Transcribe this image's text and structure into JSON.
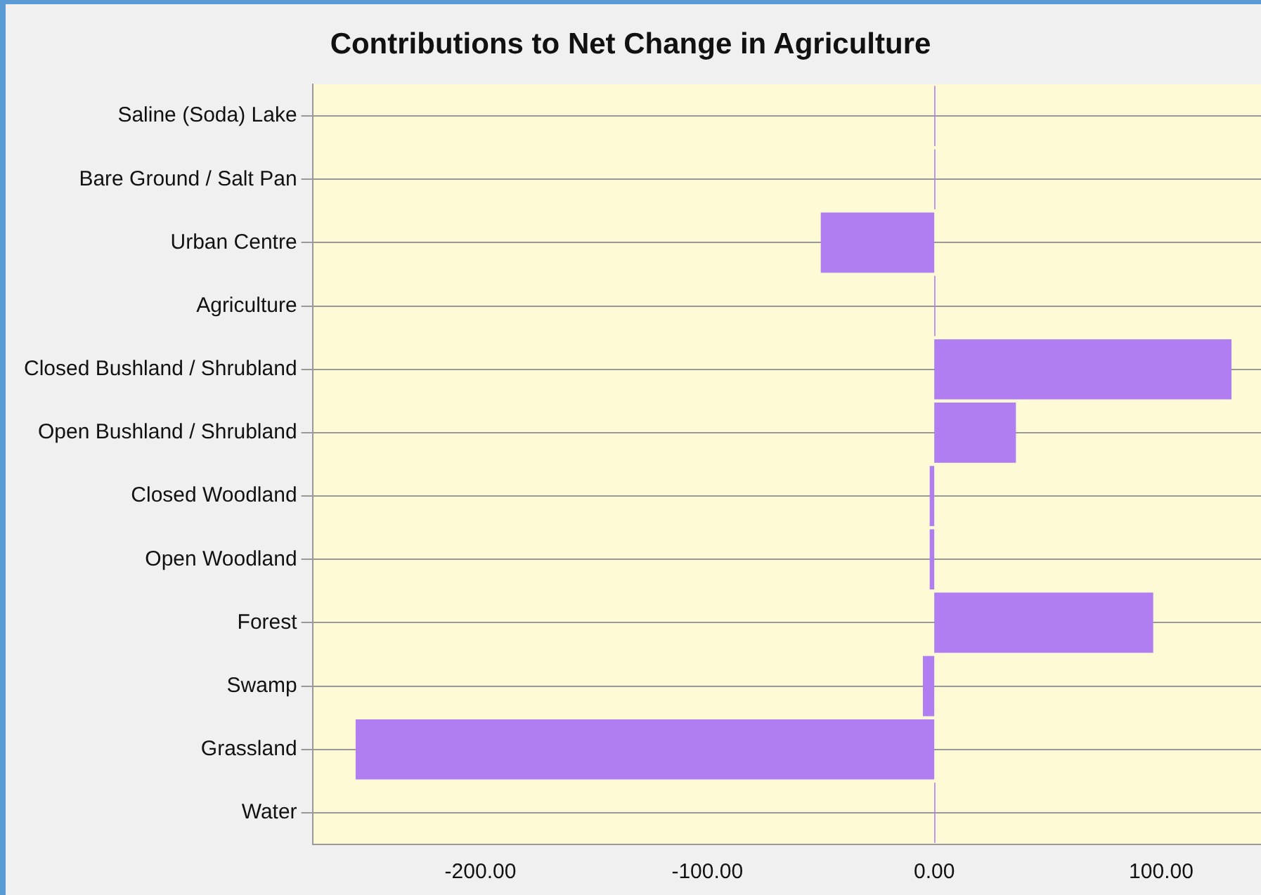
{
  "chart_data": {
    "type": "bar",
    "orientation": "horizontal",
    "title": "Contributions to Net Change in Agriculture",
    "categories": [
      "Saline (Soda) Lake",
      "Bare Ground / Salt Pan",
      "Urban Centre",
      "Agriculture",
      "Closed Bushland / Shrubland",
      "Open Bushland / Shrubland",
      "Closed Woodland",
      "Open Woodland",
      "Forest",
      "Swamp",
      "Grassland",
      "Water"
    ],
    "values": [
      0.5,
      0.5,
      -50,
      0.5,
      131,
      36,
      -2,
      -2,
      96.5,
      -5,
      -255,
      0.5
    ],
    "color": "#b07ef0",
    "xlim": [
      -274,
      144
    ],
    "xticks": [
      {
        "value": -200,
        "label": "-200.00"
      },
      {
        "value": -100,
        "label": "-100.00"
      },
      {
        "value": 0,
        "label": "0.00"
      },
      {
        "value": 100,
        "label": "100.00"
      }
    ],
    "grid": "y"
  }
}
